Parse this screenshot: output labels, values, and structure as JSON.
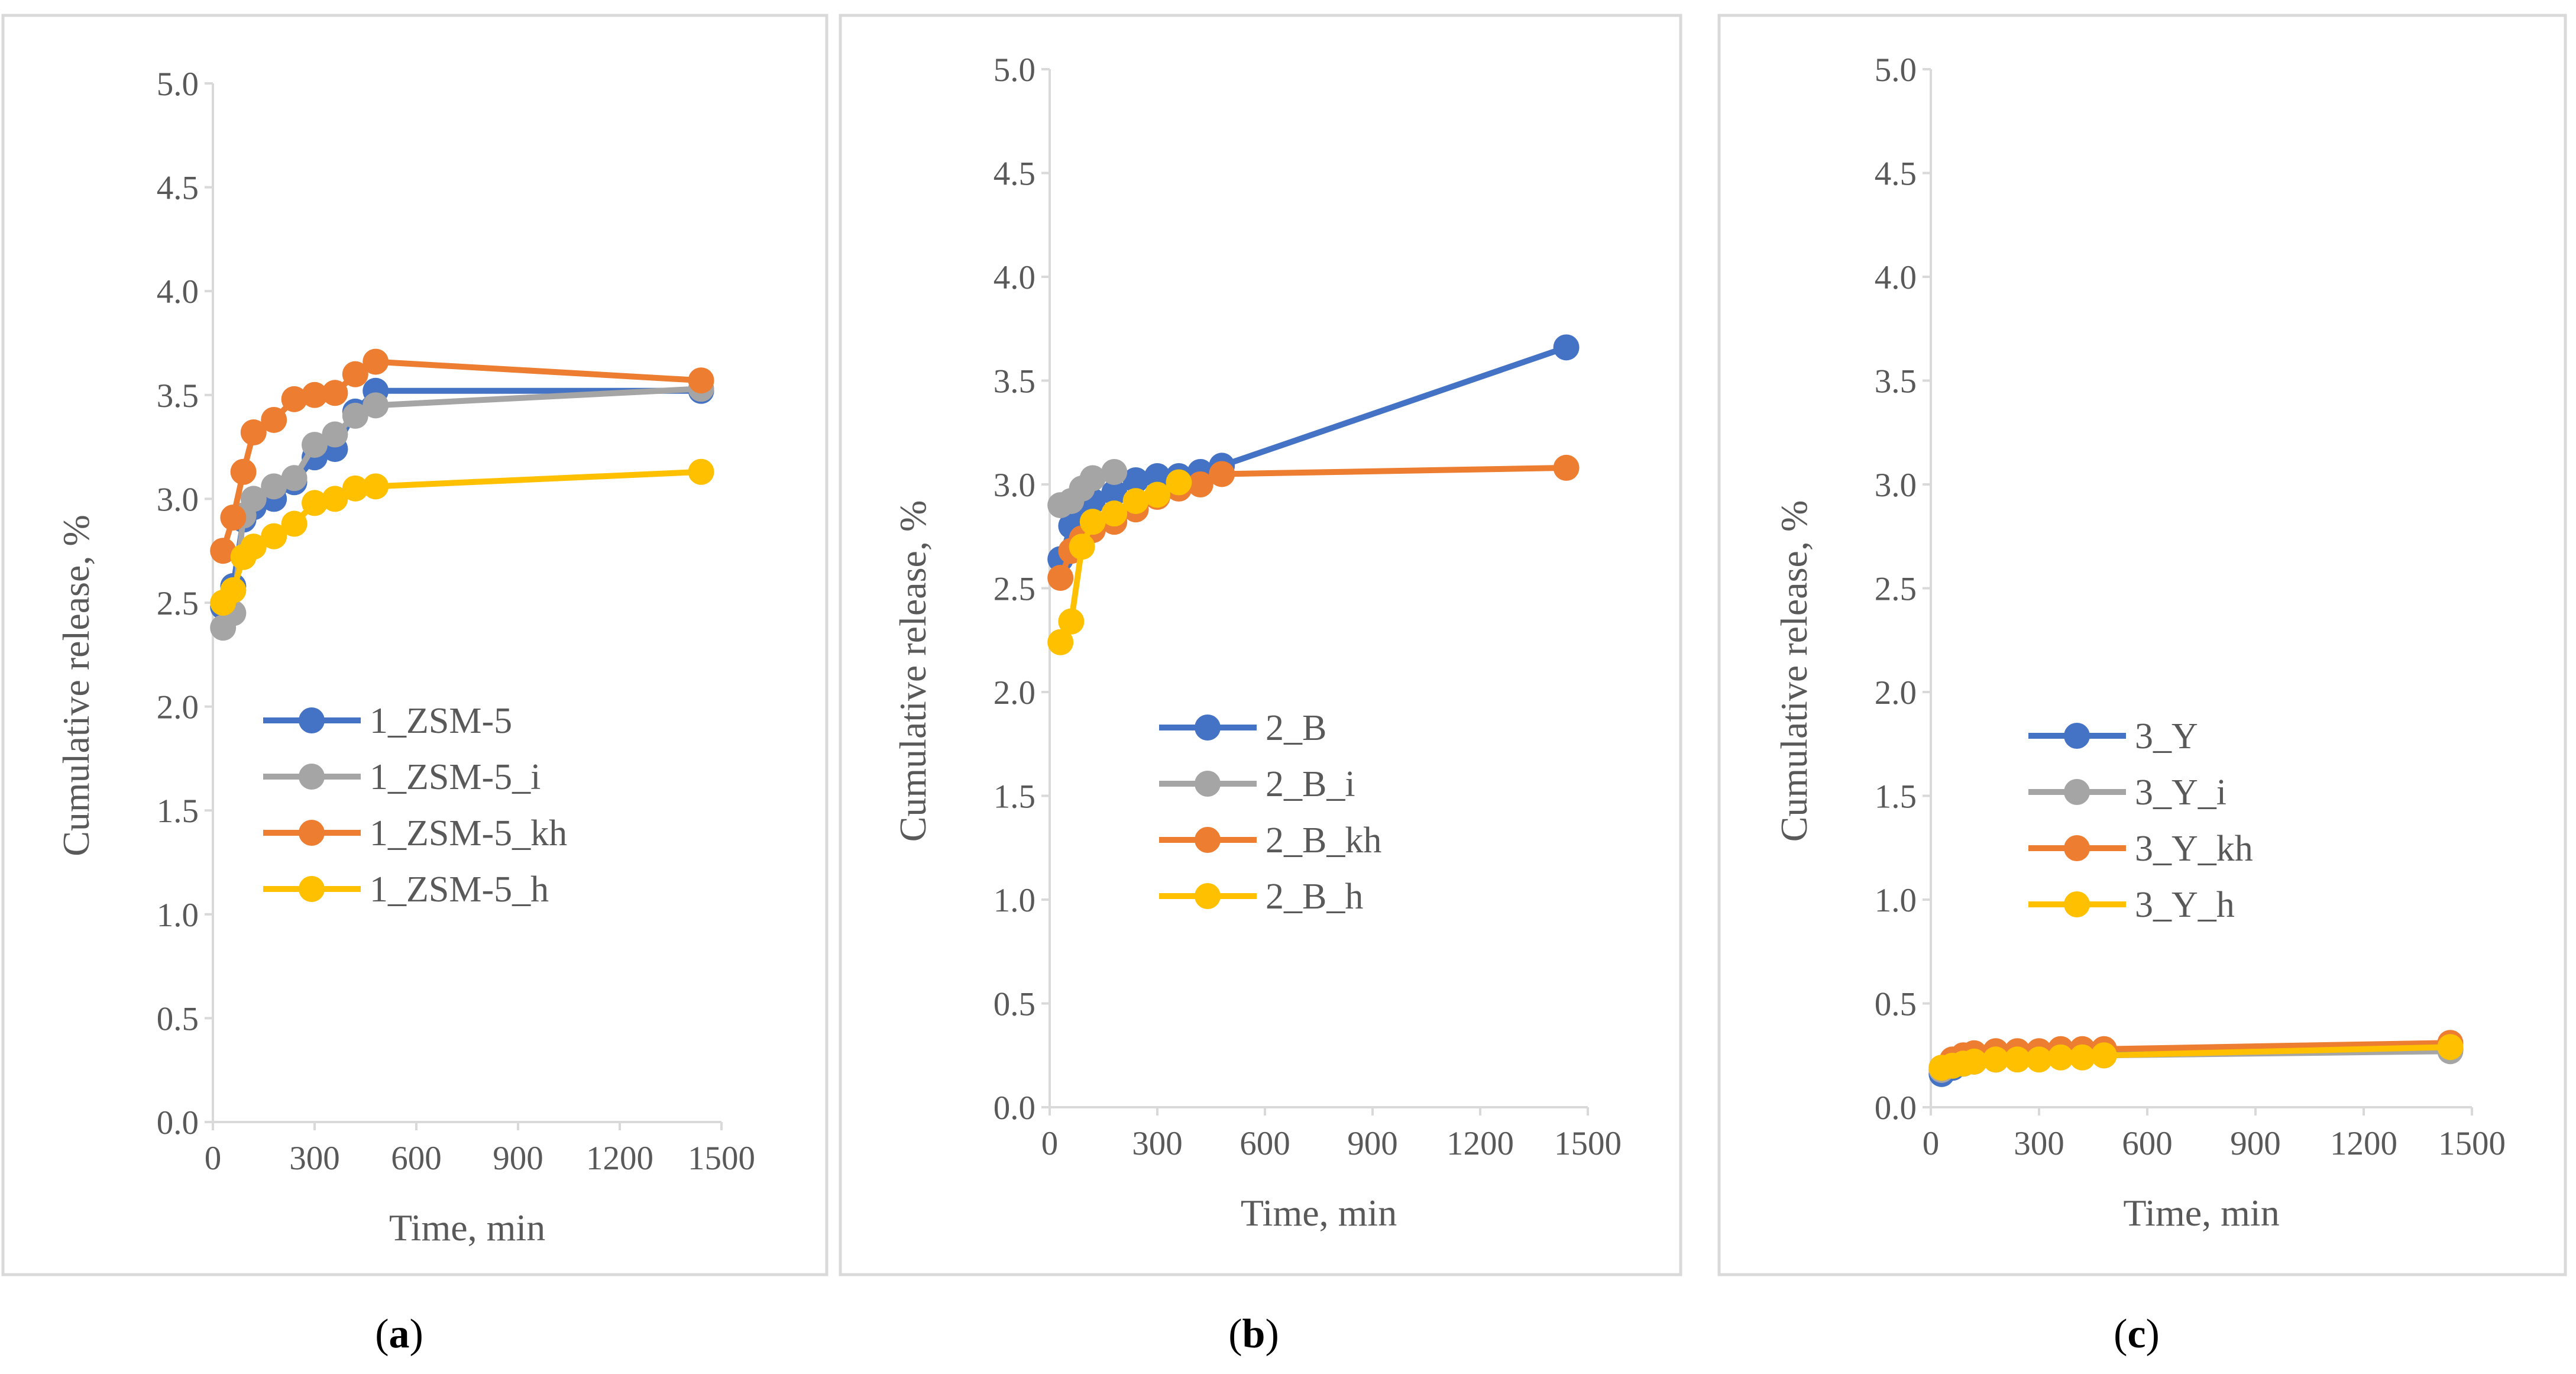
{
  "chart_data": [
    {
      "type": "line",
      "panel_label": "a",
      "xlabel": "Time, min",
      "ylabel": "Cumulative release, %",
      "xlim": [
        0,
        1500
      ],
      "ylim": [
        0,
        5
      ],
      "xticks": [
        "0",
        "300",
        "600",
        "900",
        "1200",
        "1500"
      ],
      "yticks": [
        "0.0",
        "0.5",
        "1.0",
        "1.5",
        "2.0",
        "2.5",
        "3.0",
        "3.5",
        "4.0",
        "4.5",
        "5.0"
      ],
      "legend_position": "center-left",
      "series": [
        {
          "name": "1_ZSM-5",
          "color": "#4472C4",
          "x": [
            30,
            60,
            90,
            120,
            180,
            240,
            300,
            360,
            420,
            480,
            1440
          ],
          "y": [
            2.48,
            2.58,
            2.9,
            2.96,
            3.0,
            3.08,
            3.2,
            3.24,
            3.42,
            3.52,
            3.52
          ]
        },
        {
          "name": "1_ZSM-5_i",
          "color": "#A5A5A5",
          "x": [
            30,
            60,
            90,
            120,
            180,
            240,
            300,
            360,
            420,
            480,
            1440
          ],
          "y": [
            2.38,
            2.45,
            2.92,
            3.0,
            3.06,
            3.1,
            3.26,
            3.31,
            3.4,
            3.45,
            3.53
          ]
        },
        {
          "name": "1_ZSM-5_kh",
          "color": "#ED7D31",
          "x": [
            30,
            60,
            90,
            120,
            180,
            240,
            300,
            360,
            420,
            480,
            1440
          ],
          "y": [
            2.75,
            2.91,
            3.13,
            3.32,
            3.38,
            3.48,
            3.5,
            3.51,
            3.6,
            3.66,
            3.57
          ]
        },
        {
          "name": "1_ZSM-5_h",
          "color": "#FFC000",
          "x": [
            30,
            60,
            90,
            120,
            180,
            240,
            300,
            360,
            420,
            480,
            1440
          ],
          "y": [
            2.5,
            2.56,
            2.72,
            2.77,
            2.82,
            2.88,
            2.98,
            3.0,
            3.05,
            3.06,
            3.13
          ]
        }
      ]
    },
    {
      "type": "line",
      "panel_label": "b",
      "xlabel": "Time, min",
      "ylabel": "Cumulative release, %",
      "xlim": [
        0,
        1500
      ],
      "ylim": [
        0,
        5
      ],
      "xticks": [
        "0",
        "300",
        "600",
        "900",
        "1200",
        "1500"
      ],
      "yticks": [
        "0.0",
        "0.5",
        "1.0",
        "1.5",
        "2.0",
        "2.5",
        "3.0",
        "3.5",
        "4.0",
        "4.5",
        "5.0"
      ],
      "legend_position": "center",
      "series": [
        {
          "name": "2_B",
          "color": "#4472C4",
          "x": [
            30,
            60,
            90,
            120,
            180,
            240,
            300,
            360,
            420,
            480,
            1440
          ],
          "y": [
            2.64,
            2.8,
            2.86,
            2.92,
            2.96,
            3.02,
            3.04,
            3.04,
            3.06,
            3.09,
            3.66
          ]
        },
        {
          "name": "2_B_i",
          "color": "#A5A5A5",
          "x": [
            30,
            60,
            90,
            120,
            180
          ],
          "y": [
            2.9,
            2.92,
            2.98,
            3.03,
            3.06
          ]
        },
        {
          "name": "2_B_kh",
          "color": "#ED7D31",
          "x": [
            30,
            60,
            90,
            120,
            180,
            240,
            300,
            360,
            420,
            480,
            1440
          ],
          "y": [
            2.55,
            2.68,
            2.74,
            2.78,
            2.82,
            2.88,
            2.94,
            2.98,
            3.0,
            3.05,
            3.08
          ]
        },
        {
          "name": "2_B_h",
          "color": "#FFC000",
          "x": [
            30,
            60,
            90,
            120,
            180,
            240,
            300,
            360
          ],
          "y": [
            2.24,
            2.34,
            2.7,
            2.82,
            2.86,
            2.92,
            2.95,
            3.01
          ]
        }
      ]
    },
    {
      "type": "line",
      "panel_label": "c",
      "xlabel": "Time, min",
      "ylabel": "Cumulative release, %",
      "xlim": [
        0,
        1500
      ],
      "ylim": [
        0,
        5
      ],
      "xticks": [
        "0",
        "300",
        "600",
        "900",
        "1200",
        "1500"
      ],
      "yticks": [
        "0.0",
        "0.5",
        "1.0",
        "1.5",
        "2.0",
        "2.5",
        "3.0",
        "3.5",
        "4.0",
        "4.5",
        "5.0"
      ],
      "legend_position": "center",
      "series": [
        {
          "name": "3_Y",
          "color": "#4472C4",
          "x": [
            30,
            60,
            90,
            120,
            180,
            240,
            300,
            360,
            420,
            480,
            1440
          ],
          "y": [
            0.16,
            0.19,
            0.21,
            0.22,
            0.23,
            0.24,
            0.24,
            0.25,
            0.25,
            0.26,
            0.28
          ]
        },
        {
          "name": "3_Y_i",
          "color": "#A5A5A5",
          "x": [
            30,
            60,
            90,
            120,
            180,
            240,
            300,
            360,
            420,
            480,
            1440
          ],
          "y": [
            0.18,
            0.2,
            0.21,
            0.22,
            0.23,
            0.24,
            0.24,
            0.25,
            0.25,
            0.25,
            0.27
          ]
        },
        {
          "name": "3_Y_kh",
          "color": "#ED7D31",
          "x": [
            30,
            60,
            90,
            120,
            180,
            240,
            300,
            360,
            420,
            480,
            1440
          ],
          "y": [
            0.19,
            0.23,
            0.25,
            0.26,
            0.27,
            0.27,
            0.27,
            0.28,
            0.28,
            0.28,
            0.31
          ]
        },
        {
          "name": "3_Y_h",
          "color": "#FFC000",
          "x": [
            30,
            60,
            90,
            120,
            180,
            240,
            300,
            360,
            420,
            480,
            1440
          ],
          "y": [
            0.19,
            0.2,
            0.21,
            0.22,
            0.23,
            0.23,
            0.23,
            0.24,
            0.24,
            0.25,
            0.29
          ]
        }
      ]
    }
  ]
}
